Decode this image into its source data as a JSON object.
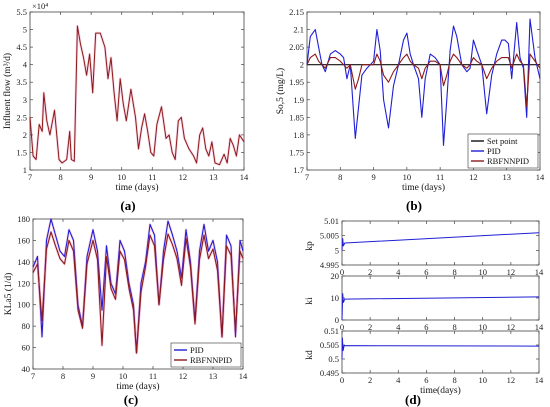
{
  "chart_data": [
    {
      "panel": "(a)",
      "type": "line",
      "xlabel": "time (days)",
      "ylabel": "Influent flow (m³/d)",
      "exponent_label": "×10⁴",
      "xlim": [
        7,
        14
      ],
      "ylim": [
        1,
        5.5
      ],
      "xticks": [
        7,
        8,
        9,
        10,
        11,
        12,
        13,
        14
      ],
      "yticks": [
        1,
        1.5,
        2,
        2.5,
        3,
        3.5,
        4,
        4.5,
        5,
        5.5
      ],
      "yticklabels": [
        "1",
        "1.5",
        "2",
        "2.5",
        "3",
        "3.5",
        "4",
        "4.5",
        "5",
        "5.5"
      ],
      "series": [
        {
          "color": "#8B1A1A",
          "x": [
            7.0,
            7.1,
            7.2,
            7.3,
            7.4,
            7.45,
            7.55,
            7.65,
            7.8,
            7.95,
            8.05,
            8.2,
            8.3,
            8.35,
            8.45,
            8.55,
            8.65,
            8.75,
            8.85,
            8.95,
            9.05,
            9.15,
            9.3,
            9.45,
            9.55,
            9.65,
            9.75,
            9.85,
            9.95,
            10.05,
            10.15,
            10.3,
            10.45,
            10.55,
            10.65,
            10.75,
            10.85,
            10.95,
            11.05,
            11.15,
            11.3,
            11.45,
            11.55,
            11.65,
            11.75,
            11.85,
            11.95,
            12.05,
            12.2,
            12.35,
            12.45,
            12.55,
            12.65,
            12.75,
            12.85,
            12.95,
            13.05,
            13.2,
            13.35,
            13.45,
            13.55,
            13.65,
            13.75,
            13.85,
            14.0
          ],
          "y": [
            2.5,
            1.4,
            1.3,
            2.3,
            2.1,
            3.2,
            2.4,
            2.0,
            2.7,
            1.3,
            1.2,
            1.3,
            2.1,
            1.3,
            1.25,
            5.1,
            4.6,
            4.2,
            3.7,
            4.3,
            3.2,
            4.9,
            4.9,
            4.5,
            3.6,
            4.2,
            3.2,
            2.4,
            3.6,
            2.9,
            2.4,
            3.3,
            2.5,
            1.6,
            2.2,
            2.6,
            2.1,
            1.5,
            1.4,
            2.3,
            2.8,
            1.9,
            2.0,
            1.5,
            1.3,
            2.4,
            2.5,
            1.9,
            1.6,
            1.4,
            1.2,
            2.0,
            2.2,
            1.6,
            1.4,
            1.8,
            1.2,
            1.15,
            1.45,
            1.2,
            1.9,
            1.7,
            1.4,
            2.0,
            1.8
          ]
        }
      ]
    },
    {
      "panel": "(b)",
      "type": "line",
      "xlabel": "time (days)",
      "ylabel": "So,5 (mg/L)",
      "xlim": [
        7,
        14
      ],
      "ylim": [
        1.7,
        2.15
      ],
      "xticks": [
        7,
        8,
        9,
        10,
        11,
        12,
        13,
        14
      ],
      "yticks": [
        1.7,
        1.75,
        1.8,
        1.85,
        1.9,
        1.95,
        2,
        2.05,
        2.1,
        2.15
      ],
      "yticklabels": [
        "1.7",
        "1.75",
        "1.8",
        "1.85",
        "1.9",
        "1.95",
        "2",
        "2.05",
        "2.1",
        "2.15"
      ],
      "legend_position": "bottom-right",
      "series": [
        {
          "name": "Set point",
          "color": "#111111",
          "x": [
            7,
            14
          ],
          "y": [
            2,
            2
          ]
        },
        {
          "name": "PID",
          "color": "#1f1fd6",
          "x": [
            7.0,
            7.1,
            7.25,
            7.35,
            7.45,
            7.55,
            7.7,
            7.85,
            8.0,
            8.1,
            8.2,
            8.3,
            8.45,
            8.55,
            8.65,
            8.8,
            9.0,
            9.1,
            9.2,
            9.3,
            9.45,
            9.6,
            9.75,
            9.9,
            10.0,
            10.1,
            10.2,
            10.35,
            10.45,
            10.55,
            10.7,
            10.85,
            11.0,
            11.1,
            11.2,
            11.3,
            11.4,
            11.5,
            11.65,
            11.8,
            11.9,
            12.0,
            12.1,
            12.25,
            12.4,
            12.55,
            12.7,
            12.85,
            12.95,
            13.05,
            13.15,
            13.3,
            13.4,
            13.5,
            13.6,
            13.7,
            13.85,
            14.0
          ],
          "y": [
            2.0,
            2.08,
            2.1,
            2.05,
            2.0,
            1.98,
            2.03,
            2.04,
            2.03,
            2.02,
            1.96,
            2.0,
            1.79,
            1.88,
            1.97,
            1.99,
            2.01,
            2.1,
            2.04,
            1.9,
            1.82,
            1.94,
            2.0,
            2.07,
            2.09,
            2.03,
            2.0,
            1.96,
            1.85,
            1.96,
            2.03,
            2.02,
            2.0,
            1.77,
            1.9,
            2.04,
            2.11,
            2.08,
            2.0,
            1.98,
            1.99,
            2.07,
            2.04,
            2.0,
            1.86,
            1.97,
            2.03,
            2.07,
            2.07,
            2.06,
            1.96,
            2.12,
            2.02,
            1.99,
            1.85,
            2.13,
            2.02,
            1.96
          ]
        },
        {
          "name": "RBFNNPID",
          "color": "#8B1A1A",
          "x": [
            7.0,
            7.1,
            7.25,
            7.35,
            7.45,
            7.55,
            7.7,
            7.85,
            8.0,
            8.1,
            8.2,
            8.3,
            8.45,
            8.55,
            8.65,
            8.8,
            9.0,
            9.1,
            9.2,
            9.3,
            9.45,
            9.6,
            9.75,
            9.9,
            10.0,
            10.1,
            10.2,
            10.35,
            10.45,
            10.55,
            10.7,
            10.85,
            11.0,
            11.1,
            11.2,
            11.3,
            11.4,
            11.5,
            11.65,
            11.8,
            11.9,
            12.0,
            12.1,
            12.25,
            12.4,
            12.55,
            12.7,
            12.85,
            12.95,
            13.05,
            13.15,
            13.3,
            13.4,
            13.5,
            13.6,
            13.7,
            13.85,
            14.0
          ],
          "y": [
            2.0,
            2.02,
            2.03,
            2.01,
            2.0,
            1.99,
            2.02,
            2.02,
            2.01,
            2.0,
            1.99,
            2.0,
            1.93,
            1.96,
            2.0,
            2.0,
            2.0,
            2.03,
            2.01,
            1.97,
            1.95,
            1.98,
            2.0,
            2.02,
            2.03,
            2.01,
            2.0,
            1.99,
            1.96,
            1.99,
            2.01,
            2.01,
            2.0,
            1.94,
            1.97,
            2.01,
            2.03,
            2.02,
            2.0,
            1.99,
            2.0,
            2.02,
            2.01,
            2.0,
            1.96,
            1.99,
            2.01,
            2.02,
            2.02,
            2.02,
            1.99,
            2.03,
            2.01,
            2.0,
            1.88,
            2.03,
            2.01,
            1.99
          ]
        }
      ]
    },
    {
      "panel": "(c)",
      "type": "line",
      "xlabel": "time (days)",
      "ylabel": "KLa5 (1/d)",
      "xlim": [
        7,
        14
      ],
      "ylim": [
        40,
        180
      ],
      "xticks": [
        7,
        8,
        9,
        10,
        11,
        12,
        13,
        14
      ],
      "yticks": [
        40,
        60,
        80,
        100,
        120,
        140,
        160,
        180
      ],
      "yticklabels": [
        "40",
        "60",
        "80",
        "100",
        "120",
        "140",
        "160",
        "180"
      ],
      "legend_position": "bottom-right",
      "series": [
        {
          "name": "PID",
          "color": "#1f1fd6",
          "x": [
            7.0,
            7.15,
            7.3,
            7.45,
            7.6,
            7.75,
            7.9,
            8.05,
            8.2,
            8.35,
            8.5,
            8.65,
            8.8,
            9.0,
            9.15,
            9.3,
            9.45,
            9.6,
            9.75,
            9.9,
            10.05,
            10.2,
            10.35,
            10.45,
            10.6,
            10.75,
            10.9,
            11.05,
            11.2,
            11.35,
            11.5,
            11.65,
            11.8,
            11.95,
            12.1,
            12.25,
            12.4,
            12.55,
            12.7,
            12.85,
            13.0,
            13.15,
            13.3,
            13.45,
            13.6,
            13.75,
            13.9,
            14.0
          ],
          "y": [
            135,
            145,
            70,
            160,
            180,
            165,
            150,
            145,
            170,
            160,
            100,
            80,
            145,
            170,
            150,
            95,
            155,
            120,
            110,
            160,
            150,
            120,
            100,
            55,
            120,
            140,
            175,
            165,
            100,
            150,
            178,
            165,
            150,
            125,
            170,
            140,
            85,
            150,
            175,
            150,
            160,
            140,
            70,
            165,
            155,
            70,
            160,
            150
          ]
        },
        {
          "name": "RBFNNPID",
          "color": "#8B1A1A",
          "x": [
            7.0,
            7.15,
            7.3,
            7.45,
            7.6,
            7.75,
            7.9,
            8.05,
            8.2,
            8.35,
            8.5,
            8.65,
            8.8,
            9.0,
            9.15,
            9.3,
            9.45,
            9.6,
            9.75,
            9.9,
            10.05,
            10.2,
            10.35,
            10.45,
            10.6,
            10.75,
            10.9,
            11.05,
            11.2,
            11.35,
            11.5,
            11.65,
            11.8,
            11.95,
            12.1,
            12.25,
            12.4,
            12.55,
            12.7,
            12.85,
            13.0,
            13.15,
            13.3,
            13.45,
            13.6,
            13.75,
            13.9,
            14.0
          ],
          "y": [
            130,
            138,
            85,
            152,
            168,
            155,
            143,
            138,
            160,
            150,
            95,
            78,
            138,
            160,
            142,
            62,
            145,
            115,
            105,
            150,
            142,
            115,
            95,
            55,
            112,
            135,
            165,
            155,
            100,
            142,
            166,
            156,
            143,
            118,
            162,
            135,
            82,
            142,
            165,
            143,
            152,
            132,
            70,
            155,
            146,
            75,
            150,
            143
          ]
        }
      ]
    },
    {
      "panel": "(d)",
      "type": "line",
      "xlabel": "time(days)",
      "subplots": [
        {
          "ylabel": "kp",
          "ylim": [
            4.995,
            5.01
          ],
          "yticks": [
            4.995,
            5,
            5.005,
            5.01
          ],
          "yticklabels": [
            "4.995",
            "5",
            "5.005",
            "5.01"
          ],
          "xticks": [
            0,
            2,
            4,
            6,
            8,
            10,
            12,
            14
          ],
          "xlim": [
            0,
            14
          ],
          "series": [
            {
              "color": "#1f1fd6",
              "x": [
                0,
                0.05,
                0.1,
                0.2,
                14
              ],
              "y": [
                5.0,
                5.004,
                5.0015,
                5.0025,
                5.006
              ]
            }
          ]
        },
        {
          "ylabel": "ki",
          "ylim": [
            0,
            20
          ],
          "yticks": [
            0,
            10,
            20
          ],
          "yticklabels": [
            "0",
            "10",
            "20"
          ],
          "xticks": [
            0,
            2,
            4,
            6,
            8,
            10,
            12,
            14
          ],
          "xlim": [
            0,
            14
          ],
          "series": [
            {
              "color": "#1f1fd6",
              "x": [
                0,
                0.05,
                0.1,
                0.2,
                14
              ],
              "y": [
                0,
                12,
                8,
                9.5,
                10.5
              ]
            }
          ]
        },
        {
          "ylabel": "kd",
          "ylim": [
            0.495,
            0.51
          ],
          "yticks": [
            0.495,
            0.5,
            0.505,
            0.51
          ],
          "yticklabels": [
            "0.495",
            "0.5",
            "0.505",
            "0.51"
          ],
          "xticks": [
            0,
            2,
            4,
            6,
            8,
            10,
            12,
            14
          ],
          "xlim": [
            0,
            14
          ],
          "series": [
            {
              "color": "#1f1fd6",
              "x": [
                0,
                0.03,
                0.08,
                0.15,
                14
              ],
              "y": [
                0.5,
                0.5075,
                0.503,
                0.5048,
                0.5046
              ]
            }
          ]
        }
      ]
    }
  ]
}
